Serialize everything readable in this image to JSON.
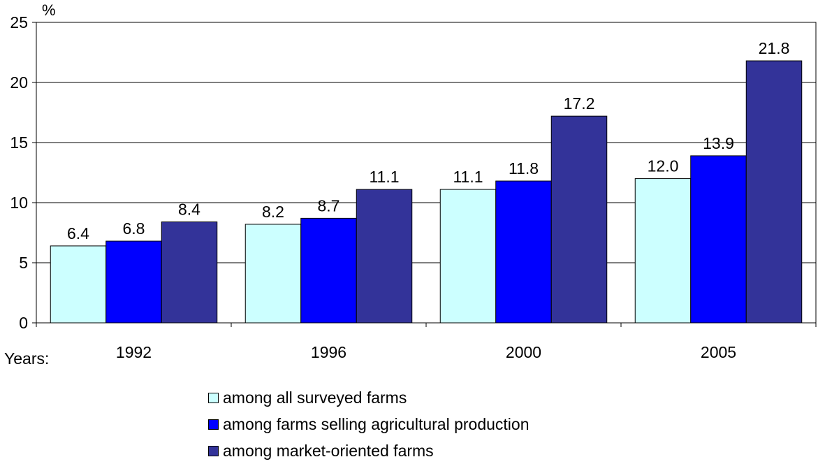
{
  "chart_data": {
    "type": "bar",
    "ylabel": "%",
    "xlabel": "Years:",
    "categories": [
      "1992",
      "1996",
      "2000",
      "2005"
    ],
    "ylim": [
      0,
      25
    ],
    "yticks": [
      0,
      5,
      10,
      15,
      20,
      25
    ],
    "grid": "horizontal",
    "legend_position": "bottom",
    "series": [
      {
        "name": "among all surveyed farms",
        "color": "#ccffff",
        "values": [
          6.4,
          8.2,
          11.1,
          12.0
        ],
        "labels": [
          "6.4",
          "8.2",
          "11.1",
          "12.0"
        ]
      },
      {
        "name": "among farms selling agricultural production",
        "color": "#0000ff",
        "values": [
          6.8,
          8.7,
          11.8,
          13.9
        ],
        "labels": [
          "6.8",
          "8.7",
          "11.8",
          "13.9"
        ]
      },
      {
        "name": "among market-oriented farms",
        "color": "#333399",
        "values": [
          8.4,
          11.1,
          17.2,
          21.8
        ],
        "labels": [
          "8.4",
          "11.1",
          "17.2",
          "21.8"
        ]
      }
    ]
  }
}
